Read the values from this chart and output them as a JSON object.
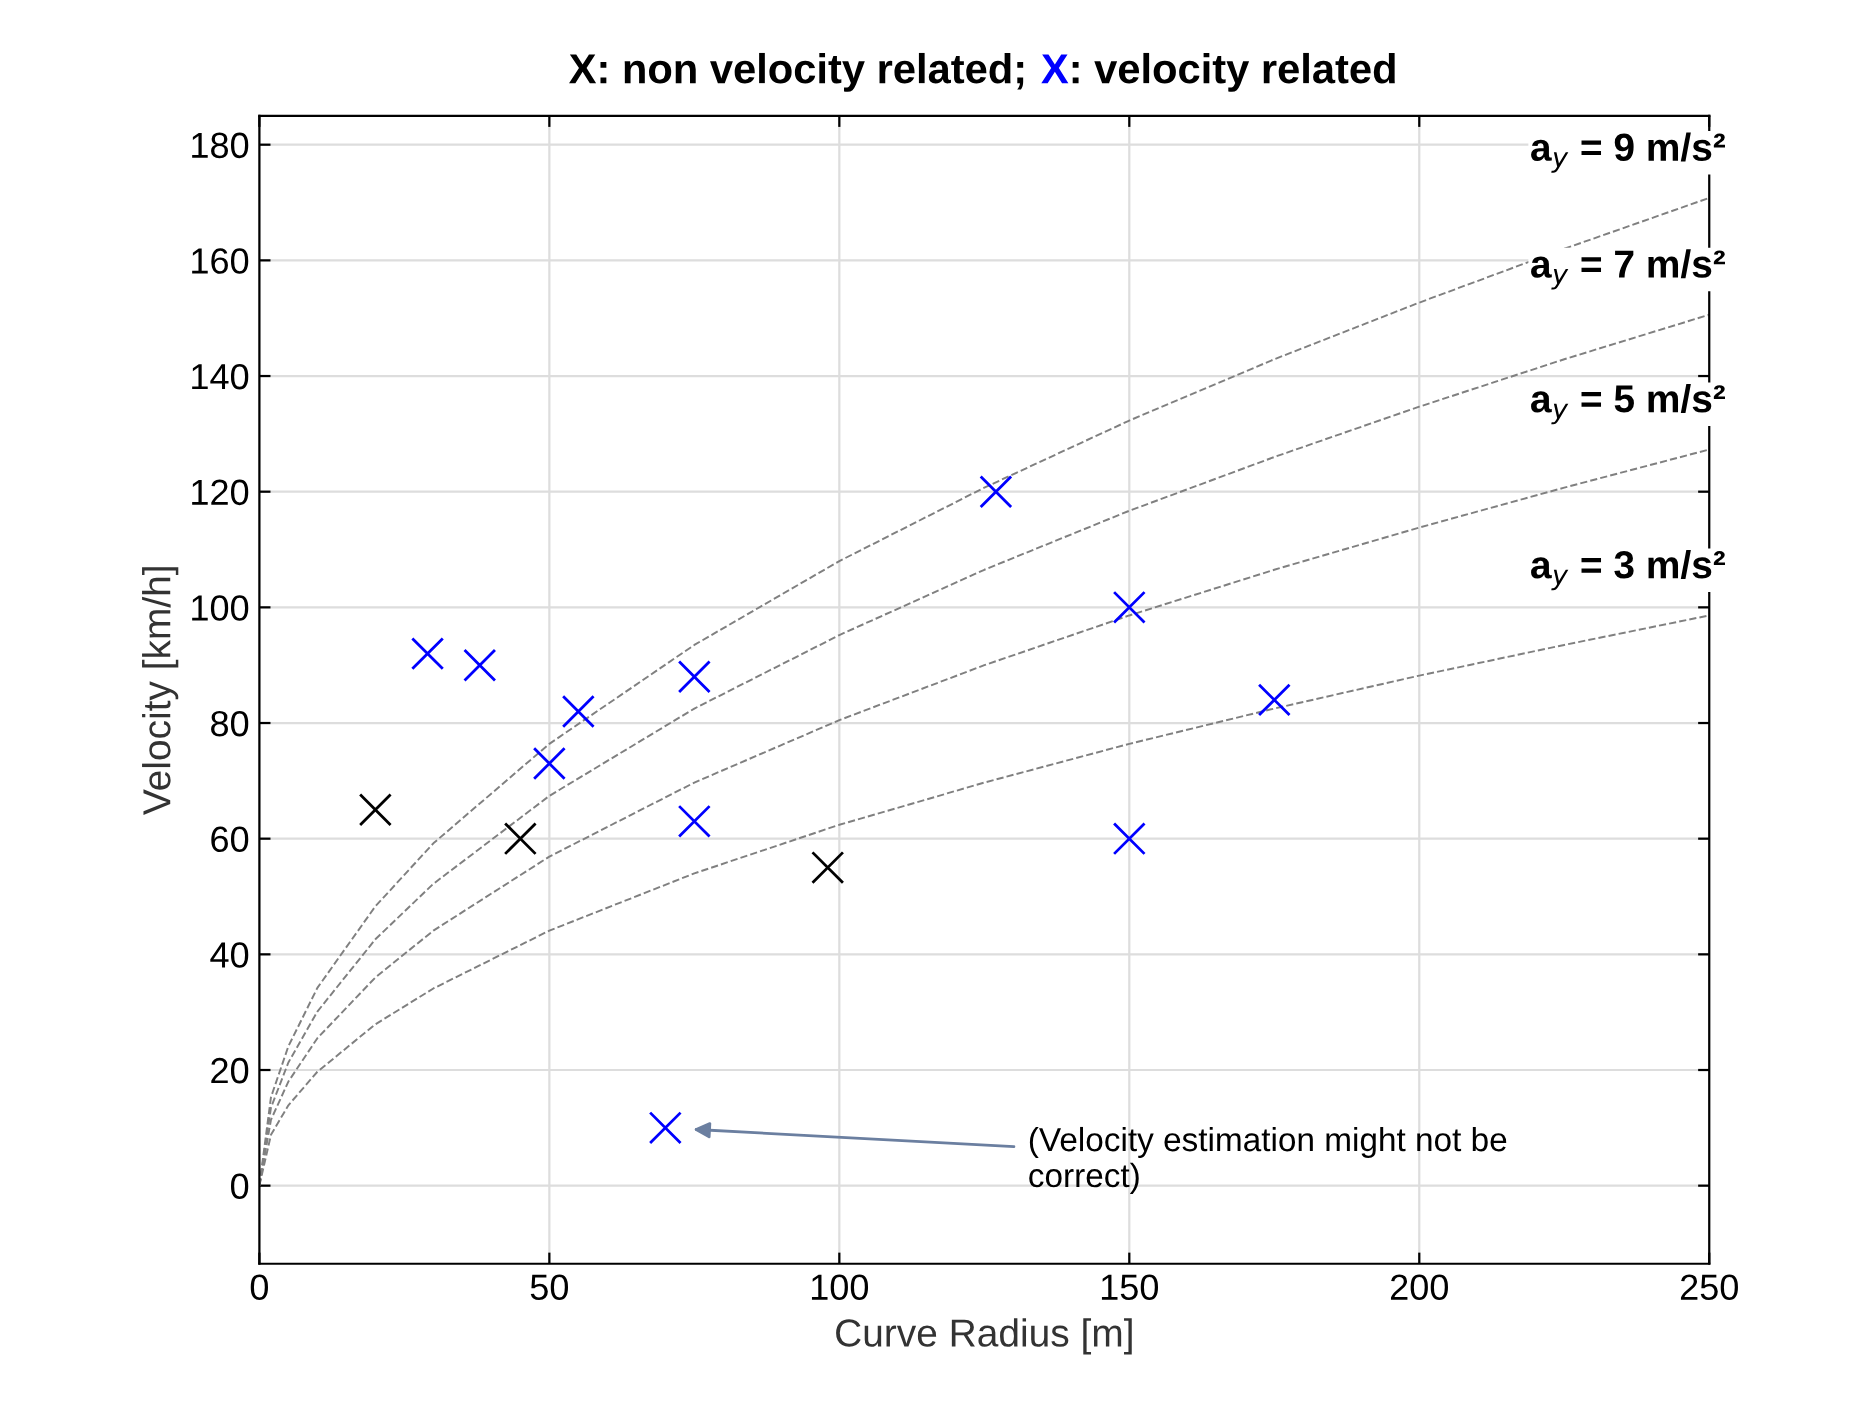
{
  "chart_data": {
    "type": "scatter",
    "title": "X: non velocity related; X: velocity related",
    "xlabel": "Curve Radius [m]",
    "ylabel": "Velocity [km/h]",
    "xlim": [
      0,
      250
    ],
    "xticks": [
      0,
      50,
      100,
      150,
      200,
      250
    ],
    "ylim": [
      -13.5,
      185
    ],
    "yticks": [
      0,
      20,
      40,
      60,
      80,
      100,
      120,
      140,
      160,
      180
    ],
    "grid": true,
    "marker": "cross",
    "series": [
      {
        "type": "line",
        "name": "a$_{y}$ = 9 m/s²",
        "line_style": "dashed",
        "marker": "none",
        "color": "#808080",
        "x": [
          0,
          2,
          5,
          10,
          20,
          30,
          50,
          75,
          100,
          125,
          150,
          175,
          200,
          225,
          250
        ],
        "values": [
          0,
          15.3,
          24.1,
          34.2,
          48.3,
          59.2,
          76.4,
          93.5,
          108,
          120.7,
          132.3,
          142.9,
          152.7,
          162,
          170.8
        ]
      },
      {
        "type": "line",
        "name": "a$_{y}$ = 7 m/s²",
        "line_style": "dashed",
        "marker": "none",
        "color": "#808080",
        "x": [
          0,
          2,
          5,
          10,
          20,
          30,
          50,
          75,
          100,
          125,
          150,
          175,
          200,
          225,
          250
        ],
        "values": [
          0,
          13.5,
          21.3,
          30.1,
          42.6,
          52.2,
          67.4,
          82.5,
          95.2,
          106.5,
          116.7,
          126.0,
          134.7,
          142.9,
          150.6
        ]
      },
      {
        "type": "line",
        "name": "a$_{y}$ = 5 m/s²",
        "line_style": "dashed",
        "marker": "none",
        "color": "#808080",
        "x": [
          0,
          2,
          5,
          10,
          20,
          30,
          50,
          75,
          100,
          125,
          150,
          175,
          200,
          225,
          250
        ],
        "values": [
          0,
          11.4,
          18.0,
          25.5,
          36.0,
          44.1,
          56.9,
          69.7,
          80.5,
          90.0,
          98.6,
          106.5,
          113.8,
          120.7,
          127.3
        ]
      },
      {
        "type": "line",
        "name": "a$_{y}$ = 3 m/s²",
        "line_style": "dashed",
        "marker": "none",
        "color": "#808080",
        "x": [
          0,
          2,
          5,
          10,
          20,
          30,
          50,
          75,
          100,
          125,
          150,
          175,
          200,
          225,
          250
        ],
        "values": [
          0,
          8.8,
          13.9,
          19.7,
          27.9,
          34.1,
          44.1,
          54.0,
          62.4,
          69.7,
          76.4,
          82.5,
          88.2,
          93.5,
          98.6
        ]
      },
      {
        "color": "#000000",
        "x": [
          20,
          45,
          98
        ],
        "values": [
          65,
          60,
          55
        ]
      },
      {
        "color": "#0000ff",
        "x": [
          29,
          38,
          50,
          55,
          75,
          75,
          127,
          150,
          150,
          175,
          70
        ],
        "values": [
          92,
          90,
          73,
          82,
          88,
          63,
          120,
          100,
          60,
          84,
          10
        ]
      }
    ],
    "annotations": [
      "(Velocity estimation might not be\ncorrect)"
    ]
  }
}
